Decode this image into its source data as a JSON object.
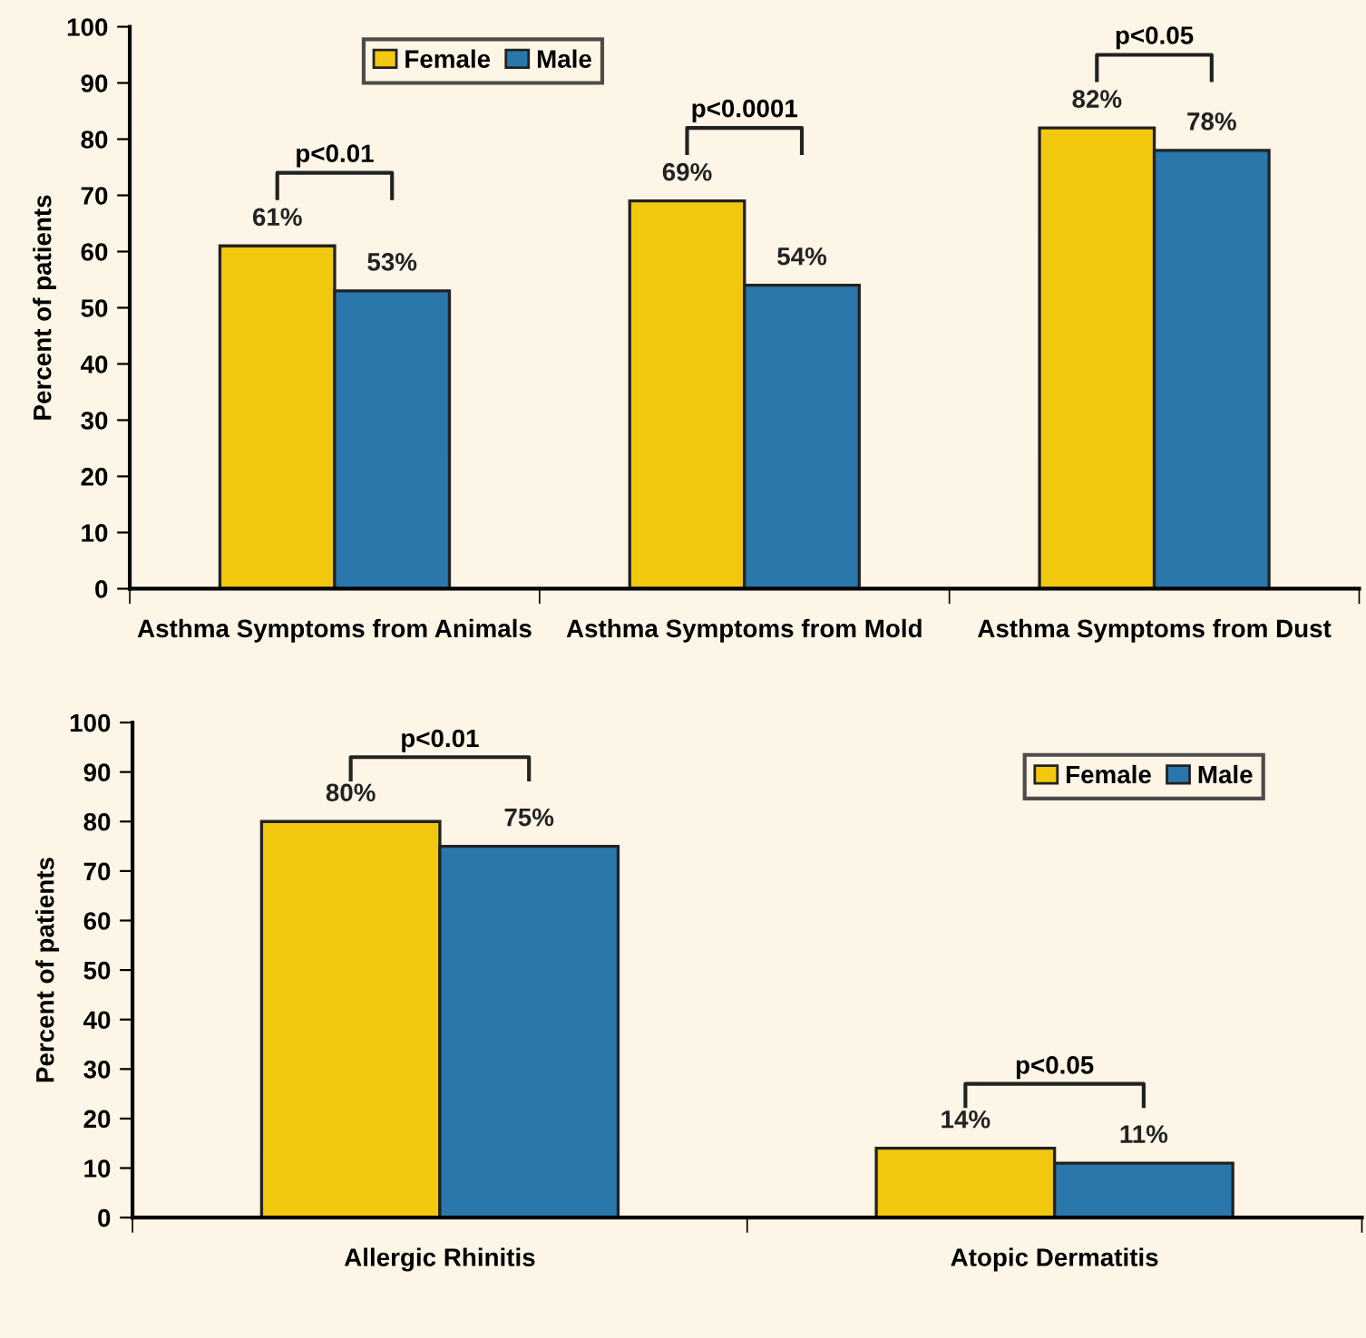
{
  "chart_data": [
    {
      "type": "bar",
      "ylabel": "Percent of patients",
      "categories": [
        "Asthma Symptoms from Animals",
        "Asthma Symptoms from Mold",
        "Asthma Symptoms from Dust"
      ],
      "series": [
        {
          "name": "Female",
          "color": "#f2c80f",
          "values": [
            61,
            69,
            82
          ],
          "value_labels": [
            "61%",
            "69%",
            "82%"
          ]
        },
        {
          "name": "Male",
          "color": "#2a78ab",
          "values": [
            53,
            54,
            78
          ],
          "value_labels": [
            "53%",
            "54%",
            "78%"
          ]
        }
      ],
      "ylim": [
        0,
        100
      ],
      "yticks": [
        0,
        10,
        20,
        30,
        40,
        50,
        60,
        70,
        80,
        90,
        100
      ],
      "grid": false,
      "legend": "top left",
      "annotations": [
        "p<0.01",
        "p<0.0001",
        "p<0.05"
      ]
    },
    {
      "type": "bar",
      "ylabel": "Percent of patients",
      "categories": [
        "Allergic Rhinitis",
        "Atopic Dermatitis"
      ],
      "series": [
        {
          "name": "Female",
          "color": "#f2c80f",
          "values": [
            80,
            14
          ],
          "value_labels": [
            "80%",
            "14%"
          ]
        },
        {
          "name": "Male",
          "color": "#2a78ab",
          "values": [
            75,
            11
          ],
          "value_labels": [
            "75%",
            "11%"
          ]
        }
      ],
      "ylim": [
        0,
        100
      ],
      "yticks": [
        0,
        10,
        20,
        30,
        40,
        50,
        60,
        70,
        80,
        90,
        100
      ],
      "grid": false,
      "legend": "top right",
      "annotations": [
        "p<0.01",
        "p<0.05"
      ]
    }
  ]
}
